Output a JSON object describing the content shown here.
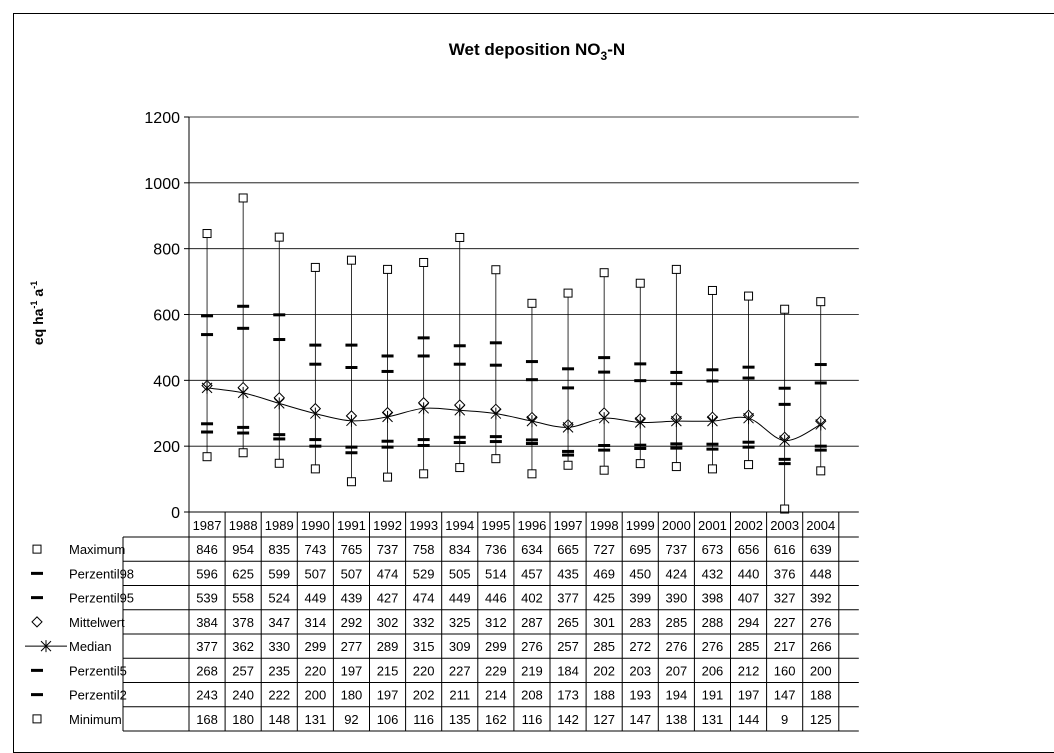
{
  "chart_data": {
    "type": "line",
    "title": "Wet deposition NO",
    "title_sub": "3",
    "title_suffix": "-N",
    "ylabel": "eq ha",
    "ylabel_sup1": "-1",
    "ylabel_mid": " a",
    "ylabel_sup2": "-1",
    "ylim": [
      0,
      1200
    ],
    "yticks": [
      "0",
      "200",
      "400",
      "600",
      "800",
      "1000",
      "1200"
    ],
    "grid": true,
    "legend": "table-rows-below-chart",
    "categories": [
      "1987",
      "1988",
      "1989",
      "1990",
      "1991",
      "1992",
      "1993",
      "1994",
      "1995",
      "1996",
      "1997",
      "1998",
      "1999",
      "2000",
      "2001",
      "2002",
      "2003",
      "2004"
    ],
    "series": [
      {
        "name": "Maximum",
        "marker": "square",
        "values": [
          846,
          954,
          835,
          743,
          765,
          737,
          758,
          834,
          736,
          634,
          665,
          727,
          695,
          737,
          673,
          656,
          616,
          639
        ]
      },
      {
        "name": "Perzentil98",
        "marker": "dash",
        "values": [
          596,
          625,
          599,
          507,
          507,
          474,
          529,
          505,
          514,
          457,
          435,
          469,
          450,
          424,
          432,
          440,
          376,
          448
        ]
      },
      {
        "name": "Perzentil95",
        "marker": "dash",
        "values": [
          539,
          558,
          524,
          449,
          439,
          427,
          474,
          449,
          446,
          402,
          377,
          425,
          399,
          390,
          398,
          407,
          327,
          392
        ]
      },
      {
        "name": "Mittelwert",
        "marker": "diamond",
        "values": [
          384,
          378,
          347,
          314,
          292,
          302,
          332,
          325,
          312,
          287,
          265,
          301,
          283,
          285,
          288,
          294,
          227,
          276
        ]
      },
      {
        "name": "Median",
        "marker": "star-line",
        "values": [
          377,
          362,
          330,
          299,
          277,
          289,
          315,
          309,
          299,
          276,
          257,
          285,
          272,
          276,
          276,
          285,
          217,
          266
        ]
      },
      {
        "name": "Perzentil5",
        "marker": "dash",
        "values": [
          268,
          257,
          235,
          220,
          197,
          215,
          220,
          227,
          229,
          219,
          184,
          202,
          203,
          207,
          206,
          212,
          160,
          200
        ]
      },
      {
        "name": "Perzentil2",
        "marker": "dash",
        "values": [
          243,
          240,
          222,
          200,
          180,
          197,
          202,
          211,
          214,
          208,
          173,
          188,
          193,
          194,
          191,
          197,
          147,
          188
        ]
      },
      {
        "name": "Minimum",
        "marker": "square",
        "values": [
          168,
          180,
          148,
          131,
          92,
          106,
          116,
          135,
          162,
          116,
          142,
          127,
          147,
          138,
          131,
          144,
          9,
          125
        ]
      }
    ]
  }
}
